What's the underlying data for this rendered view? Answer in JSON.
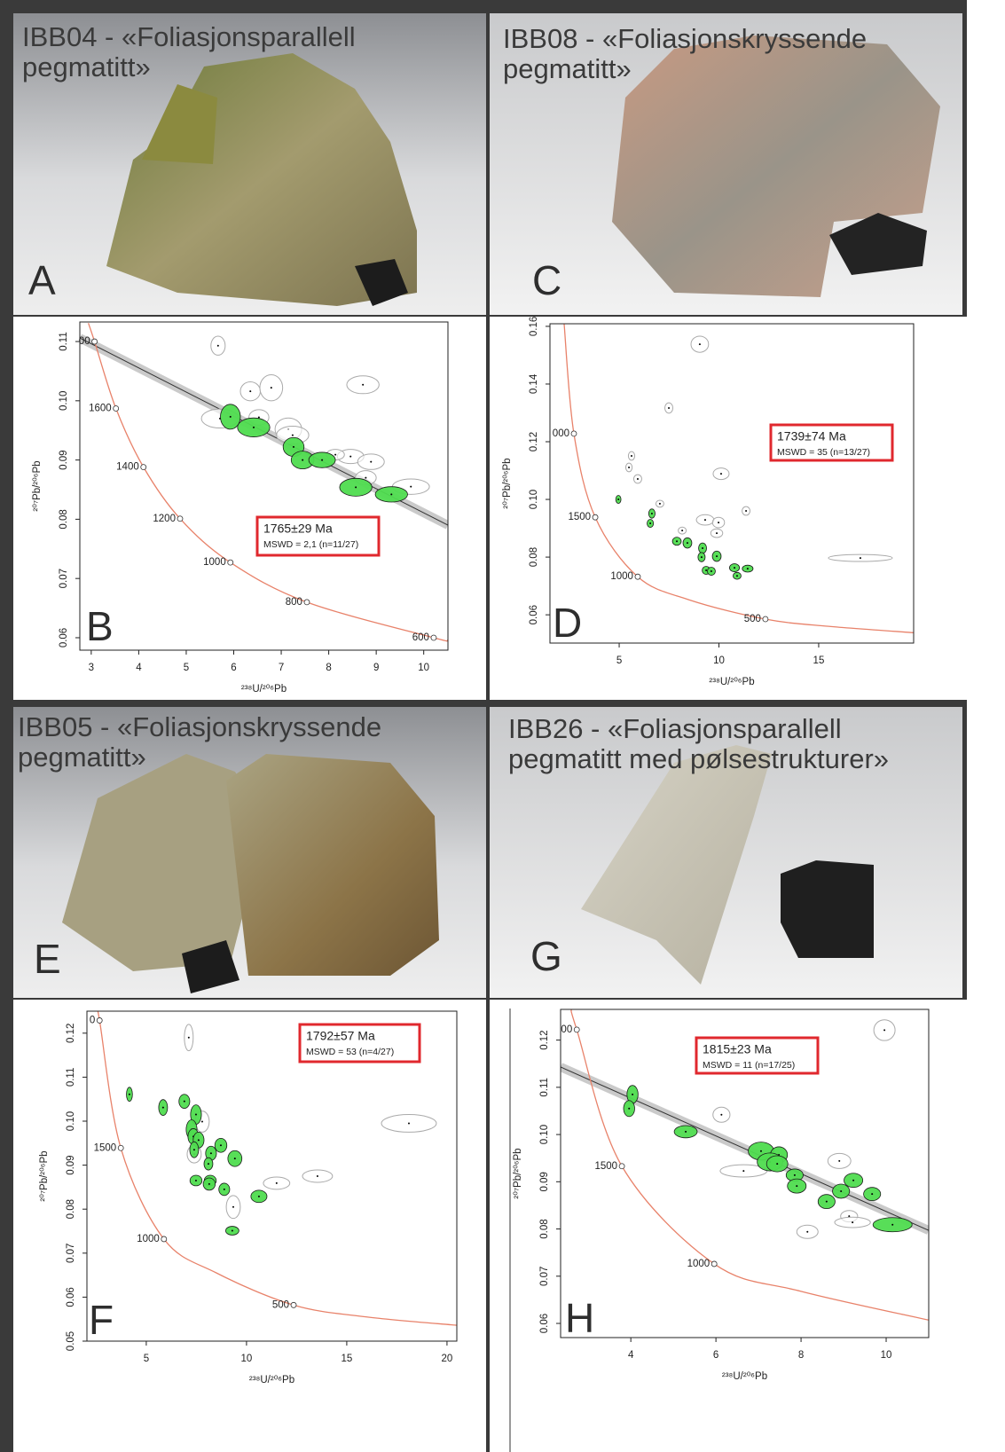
{
  "photos": [
    {
      "title_lines": [
        "IBB04 - «Foliasjonsparallell",
        "pegmatitt»"
      ],
      "label": "A"
    },
    {
      "title_lines": [
        "IBB08 - «Foliasjonskryssende",
        "pegmatitt»"
      ],
      "label": "C"
    },
    {
      "title_lines": [
        "IBB05 - «Foliasjonskryssende",
        "pegmatitt»"
      ],
      "label": "E"
    },
    {
      "title_lines": [
        "IBB26 - «Foliasjonsparallell",
        "pegmatitt med pølsestrukturer»"
      ],
      "label": "G"
    }
  ],
  "chart_data": [
    {
      "type": "scatter",
      "panel_label": "B",
      "xlabel": "²³⁸U/²⁰⁶Pb",
      "ylabel": "²⁰⁷Pb/²⁰⁶Pb",
      "xlim": [
        2.76,
        10.51
      ],
      "ylim": [
        0.0579,
        0.1133
      ],
      "xticks": [
        3,
        4,
        5,
        6,
        7,
        8,
        9,
        10
      ],
      "yticks": [
        0.06,
        0.07,
        0.08,
        0.09,
        {
          "value": 0.1,
          "label": "0.10"
        },
        0.11
      ],
      "annotation": {
        "age": "1765±29 Ma",
        "mswd": "MSWD = 2,1 (n=11/27)"
      },
      "concordia": {
        "color": "#e8826a",
        "x": [
          2.94,
          3.07,
          3.52,
          4.1,
          4.87,
          5.93,
          7.54,
          10.21,
          10.51
        ],
        "y": [
          0.1131,
          0.11,
          0.0987,
          0.0888,
          0.0801,
          0.0727,
          0.066,
          0.06,
          0.0596
        ],
        "labels": [
          null,
          "00",
          "1600",
          "1400",
          "1200",
          "1000",
          "800",
          "600",
          null
        ]
      },
      "fit_line": {
        "color": "#333333",
        "x": [
          2.76,
          10.51
        ],
        "y": [
          0.1106,
          0.079
        ]
      },
      "series": [
        {
          "color": "#ffffff",
          "x": [
            5.67,
            6.35,
            6.79,
            5.71,
            6.53,
            7.15,
            7.24,
            8.46,
            8.89,
            8.72,
            8.14,
            8.78,
            9.73
          ],
          "y": [
            0.1093,
            0.1016,
            0.1022,
            0.097,
            0.0972,
            0.0952,
            0.0942,
            0.0906,
            0.0897,
            0.1027,
            0.0909,
            0.087,
            0.0855
          ],
          "x_err": [
            0.15,
            0.21,
            0.24,
            0.39,
            0.21,
            0.28,
            0.34,
            0.28,
            0.28,
            0.34,
            0.19,
            0.22,
            0.39
          ],
          "y_err": [
            0.0016,
            0.0016,
            0.0022,
            0.0016,
            0.0013,
            0.0019,
            0.0015,
            0.0012,
            0.0013,
            0.0015,
            0.0009,
            0.0012,
            0.0013
          ]
        },
        {
          "color": "#4fdc4f",
          "x": [
            5.93,
            6.42,
            7.26,
            7.45,
            7.86,
            8.57,
            9.32
          ],
          "y": [
            0.0973,
            0.0955,
            0.0922,
            0.09,
            0.09,
            0.0854,
            0.0842
          ],
          "x_err": [
            0.21,
            0.34,
            0.22,
            0.24,
            0.28,
            0.34,
            0.34
          ],
          "y_err": [
            0.0021,
            0.0016,
            0.0016,
            0.0015,
            0.0013,
            0.0015,
            0.0013
          ]
        }
      ]
    },
    {
      "type": "scatter",
      "panel_label": "D",
      "xlabel": "²³⁸U/²⁰⁶Pb",
      "ylabel": "²⁰⁷Pb/²⁰⁶Pb",
      "xlim": [
        1.53,
        19.76
      ],
      "ylim": [
        0.0502,
        0.1609
      ],
      "xticks": [
        5,
        10,
        15
      ],
      "yticks": [
        0.06,
        0.08,
        {
          "value": 0.1,
          "label": "0.10"
        },
        0.12,
        0.14,
        0.16
      ],
      "annotation": {
        "age": "1739±74 Ma",
        "mswd": "MSWD = 35 (n=13/27)"
      },
      "concordia": {
        "color": "#e8826a",
        "x": [
          2.24,
          2.73,
          3.8,
          5.93,
          8.5,
          12.33,
          15.5,
          19.76
        ],
        "y": [
          0.1609,
          0.1228,
          0.0938,
          0.0732,
          0.0652,
          0.0585,
          0.056,
          0.0538
        ],
        "labels": [
          null,
          "000",
          "1500",
          "1000",
          null,
          "500",
          null,
          null
        ]
      },
      "series": [
        {
          "color": "#ffffff",
          "x": [
            9.04,
            7.49,
            5.62,
            5.49,
            5.93,
            10.11,
            7.04,
            11.36,
            9.31,
            9.98,
            9.89,
            8.16,
            17.09
          ],
          "y": [
            0.1538,
            0.1317,
            0.1151,
            0.1111,
            0.1071,
            0.1089,
            0.0985,
            0.096,
            0.0929,
            0.092,
            0.0883,
            0.0892,
            0.0797
          ],
          "x_err": [
            0.44,
            0.2,
            0.16,
            0.16,
            0.2,
            0.4,
            0.2,
            0.2,
            0.44,
            0.3,
            0.3,
            0.2,
            1.6
          ],
          "y_err": [
            0.0028,
            0.0018,
            0.0015,
            0.0015,
            0.0015,
            0.002,
            0.0012,
            0.0015,
            0.0018,
            0.0018,
            0.0015,
            0.0012,
            0.0012
          ]
        },
        {
          "color": "#4fdc4f",
          "x": [
            4.96,
            6.64,
            6.56,
            7.89,
            8.42,
            9.18,
            9.13,
            9.89,
            9.36,
            9.62,
            10.78,
            11.44,
            10.91
          ],
          "y": [
            0.1,
            0.0951,
            0.0917,
            0.0855,
            0.0849,
            0.0831,
            0.08,
            0.0803,
            0.0754,
            0.0751,
            0.0763,
            0.076,
            0.0735
          ],
          "x_err": [
            0.13,
            0.16,
            0.16,
            0.22,
            0.22,
            0.2,
            0.18,
            0.22,
            0.2,
            0.2,
            0.25,
            0.27,
            0.2
          ],
          "y_err": [
            0.0014,
            0.0016,
            0.0014,
            0.0014,
            0.0018,
            0.0018,
            0.0016,
            0.0018,
            0.0014,
            0.0014,
            0.0014,
            0.0012,
            0.0012
          ]
        }
      ]
    },
    {
      "type": "scatter",
      "panel_label": "F",
      "xlabel": "²³⁸U/²⁰⁶Pb",
      "ylabel": "²⁰⁷Pb/²⁰⁶Pb",
      "xlim": [
        2.04,
        20.49
      ],
      "ylim": [
        0.05,
        0.125
      ],
      "xticks": [
        5,
        10,
        15,
        20
      ],
      "yticks": [
        0.05,
        0.06,
        0.07,
        0.08,
        0.09,
        {
          "value": 0.1,
          "label": "0.10"
        },
        0.11,
        0.12
      ],
      "annotation": {
        "age": "1792±57 Ma",
        "mswd": "MSWD = 53 (n=4/27)"
      },
      "concordia": {
        "color": "#e8826a",
        "x": [
          2.54,
          2.67,
          3.73,
          5.88,
          8.5,
          12.35,
          16,
          20.49
        ],
        "y": [
          0.1252,
          0.1229,
          0.0939,
          0.0732,
          0.0655,
          0.0582,
          0.0555,
          0.0536
        ],
        "labels": [
          null,
          "0",
          "1500",
          "1000",
          null,
          "500",
          null,
          null
        ]
      },
      "series": [
        {
          "color": "#ffffff",
          "x": [
            7.12,
            7.79,
            7.39,
            9.34,
            11.5,
            13.54,
            18.1
          ],
          "y": [
            0.119,
            0.0999,
            0.0925,
            0.0805,
            0.0859,
            0.0875,
            0.0995
          ],
          "x_err": [
            0.22,
            0.35,
            0.35,
            0.35,
            0.66,
            0.75,
            1.37
          ],
          "y_err": [
            0.003,
            0.0024,
            0.002,
            0.0026,
            0.0014,
            0.0014,
            0.002
          ]
        },
        {
          "color": "#4fdc4f",
          "x": [
            4.16,
            5.84,
            6.9,
            7.48,
            7.26,
            7.35,
            7.61,
            7.39,
            8.23,
            8.72,
            8.1,
            9.42,
            7.48,
            8.19,
            8.14,
            8.89,
            10.62,
            9.29
          ],
          "y": [
            0.1061,
            0.1031,
            0.1045,
            0.1015,
            0.0981,
            0.0965,
            0.0957,
            0.0935,
            0.0927,
            0.0945,
            0.0903,
            0.0915,
            0.0865,
            0.0865,
            0.0857,
            0.0845,
            0.0829,
            0.0751
          ],
          "x_err": [
            0.15,
            0.22,
            0.27,
            0.27,
            0.27,
            0.27,
            0.27,
            0.22,
            0.27,
            0.3,
            0.22,
            0.35,
            0.3,
            0.3,
            0.3,
            0.27,
            0.4,
            0.33
          ],
          "y_err": [
            0.0016,
            0.0018,
            0.0016,
            0.0022,
            0.0022,
            0.0018,
            0.0018,
            0.0018,
            0.0016,
            0.0016,
            0.0014,
            0.0018,
            0.0012,
            0.0012,
            0.0014,
            0.0014,
            0.0014,
            0.001
          ]
        }
      ]
    },
    {
      "type": "scatter",
      "panel_label": "H",
      "xlabel": "²³⁸U/²⁰⁶Pb",
      "ylabel": "²⁰⁷Pb/²⁰⁶Pb",
      "xlim": [
        2.35,
        11
      ],
      "ylim": [
        0.057,
        0.1265
      ],
      "xticks": [
        4,
        6,
        8,
        10
      ],
      "yticks": [
        0.06,
        0.07,
        0.08,
        0.09,
        {
          "value": 0.1,
          "label": "0.10"
        },
        0.11,
        0.12
      ],
      "annotation": {
        "age": "1815±23 Ma",
        "mswd": "MSWD = 11 (n=17/25)"
      },
      "concordia": {
        "color": "#e8826a",
        "x": [
          2.6,
          2.73,
          3.79,
          5.96,
          8,
          11
        ],
        "y": [
          0.1265,
          0.1222,
          0.0933,
          0.0726,
          0.0668,
          0.0607
        ],
        "labels": [
          null,
          "00",
          "1500",
          "1000",
          null,
          null
        ]
      },
      "fit_line": {
        "color": "#333333",
        "x": [
          2.35,
          11
        ],
        "y": [
          0.1143,
          0.0797
        ]
      },
      "series": [
        {
          "color": "#ffffff",
          "x": [
            9.96,
            6.13,
            6.65,
            8.9,
            9.13,
            9.21,
            8.15
          ],
          "y": [
            0.1221,
            0.1042,
            0.0923,
            0.0944,
            0.0827,
            0.0814,
            0.0794
          ],
          "x_err": [
            0.25,
            0.2,
            0.55,
            0.27,
            0.2,
            0.42,
            0.25
          ],
          "y_err": [
            0.0022,
            0.0016,
            0.0013,
            0.0016,
            0.0012,
            0.0011,
            0.0014
          ]
        },
        {
          "color": "#4fdc4f",
          "x": [
            4.04,
            3.96,
            5.29,
            7.06,
            7.48,
            7.27,
            7.44,
            7.85,
            7.9,
            8.6,
            8.94,
            9.23,
            9.67,
            10.15
          ],
          "y": [
            0.1085,
            0.1055,
            0.1006,
            0.0965,
            0.0957,
            0.0942,
            0.0938,
            0.0914,
            0.0891,
            0.0858,
            0.088,
            0.0903,
            0.0874,
            0.0809
          ],
          "x_err": [
            0.13,
            0.13,
            0.27,
            0.3,
            0.2,
            0.3,
            0.25,
            0.2,
            0.22,
            0.2,
            0.2,
            0.22,
            0.2,
            0.46
          ],
          "y_err": [
            0.0019,
            0.0017,
            0.0013,
            0.0019,
            0.0017,
            0.0019,
            0.0017,
            0.0013,
            0.0015,
            0.0015,
            0.0015,
            0.0015,
            0.0014,
            0.0015
          ]
        }
      ]
    }
  ]
}
